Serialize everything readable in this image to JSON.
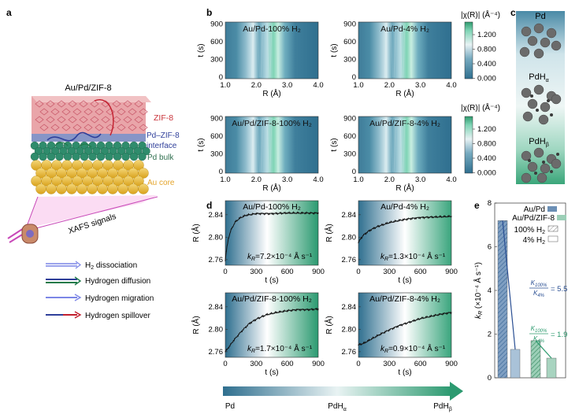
{
  "panel_letters": [
    "a",
    "b",
    "c",
    "d",
    "e"
  ],
  "panel_a": {
    "title": "Au/Pd/ZIF-8",
    "layers": {
      "zif": "ZIF-8",
      "interface": "Pd–ZIF-8 interface",
      "interface_line1": "Pd–ZIF-8",
      "interface_line2": "interface",
      "bulk": "Pd bulk",
      "core": "Au core"
    },
    "xafs": "XAFS signals",
    "legend": [
      {
        "label": "H₂ dissociation",
        "color": "#5a63b8"
      },
      {
        "label": "Hydrogen diffusion",
        "color": "#1f7a4a"
      },
      {
        "label": "Hydrogen migration",
        "color": "#7c86e6"
      },
      {
        "label": "Hydrogen spillover",
        "color": "#c21f2e"
      }
    ],
    "colors": {
      "zif": "#e2868c",
      "bulk": "#2e8a6e",
      "core": "#e7b93a",
      "pd_text": "#2f6f4f",
      "zif_text": "#c9333a",
      "iface_text": "#2f3f9a",
      "core_text": "#e4a42a"
    }
  },
  "panel_b": {
    "maps": [
      {
        "title": "Au/Pd-100% H₂"
      },
      {
        "title": "Au/Pd-4% H₂"
      },
      {
        "title": "Au/Pd/ZIF-8-100% H₂"
      },
      {
        "title": "Au/Pd/ZIF-8-4% H₂"
      }
    ],
    "xlabel": "R (Å)",
    "ylabel": "t (s)",
    "xticks": [
      "1.0",
      "2.0",
      "3.0",
      "4.0"
    ],
    "colorbar_label": "|χ(R)| (Å⁻⁴)",
    "colorbar_ticks": [
      "1.200",
      "0.800",
      "0.400",
      "0.000"
    ],
    "colorbar_ticks_low": [
      "1.200",
      "0.800",
      "0.400",
      "0.000"
    ]
  },
  "panel_c": {
    "labels": [
      "Pd",
      "PdHα",
      "PdHβ"
    ],
    "labels_main": [
      "Pd",
      "PdH",
      "PdH"
    ],
    "labels_sub": [
      "",
      "α",
      "β"
    ]
  },
  "chart_data": [
    {
      "type": "line",
      "title": "Au/Pd-100% H₂",
      "xlabel": "t (s)",
      "ylabel": "R (Å)",
      "xlim": [
        0,
        900
      ],
      "ylim": [
        2.75,
        2.865
      ],
      "xticks": [
        "0",
        "300",
        "600",
        "900"
      ],
      "yticks": [
        "2.76",
        "2.80",
        "2.84"
      ],
      "annotation": "kₙ=7.2×10⁻⁴ Å s⁻¹",
      "k_text": "=7.2×10⁻⁴ Å s⁻¹",
      "x": [
        0,
        10,
        30,
        60,
        100,
        150,
        200,
        300,
        450,
        600,
        750,
        900
      ],
      "y": [
        2.758,
        2.775,
        2.798,
        2.815,
        2.828,
        2.835,
        2.839,
        2.842,
        2.842,
        2.843,
        2.843,
        2.843
      ]
    },
    {
      "type": "line",
      "title": "Au/Pd-4% H₂",
      "xlabel": "t (s)",
      "ylabel": "R (Å)",
      "xlim": [
        0,
        900
      ],
      "ylim": [
        2.75,
        2.865
      ],
      "xticks": [
        "0",
        "300",
        "600",
        "900"
      ],
      "yticks": [
        "2.76",
        "2.80",
        "2.84"
      ],
      "k_text": "=1.3×10⁻⁴ Å s⁻¹",
      "x": [
        0,
        20,
        50,
        100,
        150,
        200,
        300,
        400,
        500,
        600,
        750,
        900
      ],
      "y": [
        2.79,
        2.797,
        2.804,
        2.811,
        2.816,
        2.82,
        2.826,
        2.83,
        2.833,
        2.835,
        2.836,
        2.837
      ]
    },
    {
      "type": "line",
      "title": "Au/Pd/ZIF-8-100% H₂",
      "xlabel": "t (s)",
      "ylabel": "R (Å)",
      "xlim": [
        0,
        900
      ],
      "ylim": [
        2.75,
        2.865
      ],
      "xticks": [
        "0",
        "300",
        "600",
        "900"
      ],
      "yticks": [
        "2.76",
        "2.80",
        "2.84"
      ],
      "k_text": "=1.7×10⁻⁴ Å s⁻¹",
      "x": [
        0,
        30,
        80,
        150,
        230,
        300,
        400,
        500,
        600,
        700,
        800,
        900
      ],
      "y": [
        2.76,
        2.767,
        2.78,
        2.795,
        2.81,
        2.818,
        2.826,
        2.83,
        2.833,
        2.835,
        2.835,
        2.836
      ]
    },
    {
      "type": "line",
      "title": "Au/Pd/ZIF-8-4% H₂",
      "xlabel": "t (s)",
      "ylabel": "R (Å)",
      "xlim": [
        0,
        900
      ],
      "ylim": [
        2.75,
        2.865
      ],
      "xticks": [
        "0",
        "300",
        "600",
        "900"
      ],
      "yticks": [
        "2.76",
        "2.80",
        "2.84"
      ],
      "k_text": "=0.9×10⁻⁴ Å s⁻¹",
      "x": [
        0,
        50,
        100,
        200,
        300,
        400,
        500,
        600,
        700,
        800,
        900
      ],
      "y": [
        2.772,
        2.775,
        2.78,
        2.79,
        2.799,
        2.807,
        2.813,
        2.819,
        2.823,
        2.827,
        2.83
      ]
    },
    {
      "type": "bar",
      "ylabel": "kₙ (×10⁻⁴ Å s⁻¹)",
      "ylim": [
        0,
        8
      ],
      "yticks": [
        "0",
        "2",
        "4",
        "6",
        "8"
      ],
      "legend": [
        "Au/Pd",
        "Au/Pd/ZIF-8",
        "100% H₂",
        "4% H₂"
      ],
      "legend_h2_100": "100% H",
      "legend_h2_4": "4% H",
      "categories": [
        "Au/Pd-100% H₂",
        "Au/Pd-4% H₂",
        "Au/Pd/ZIF-8-100% H₂",
        "Au/Pd/ZIF-8-4% H₂"
      ],
      "values": [
        7.2,
        1.3,
        1.7,
        0.9
      ],
      "colors": [
        "#6b8fb5",
        "#a9c2d8",
        "#57a982",
        "#a8d4c0"
      ],
      "ratio1": {
        "num": "K100%",
        "den": "K4%",
        "value": "= 5.5",
        "color": "#2a4f93"
      },
      "ratio2": {
        "num": "K100%",
        "den": "K4%",
        "value": "= 1.9",
        "color": "#2c9a6e"
      }
    }
  ],
  "bottom_bar": {
    "labels": [
      "Pd",
      "PdHα",
      "PdHβ"
    ],
    "main": [
      "Pd",
      "PdH",
      "PdH"
    ],
    "sub": [
      "",
      "α",
      "β"
    ]
  }
}
